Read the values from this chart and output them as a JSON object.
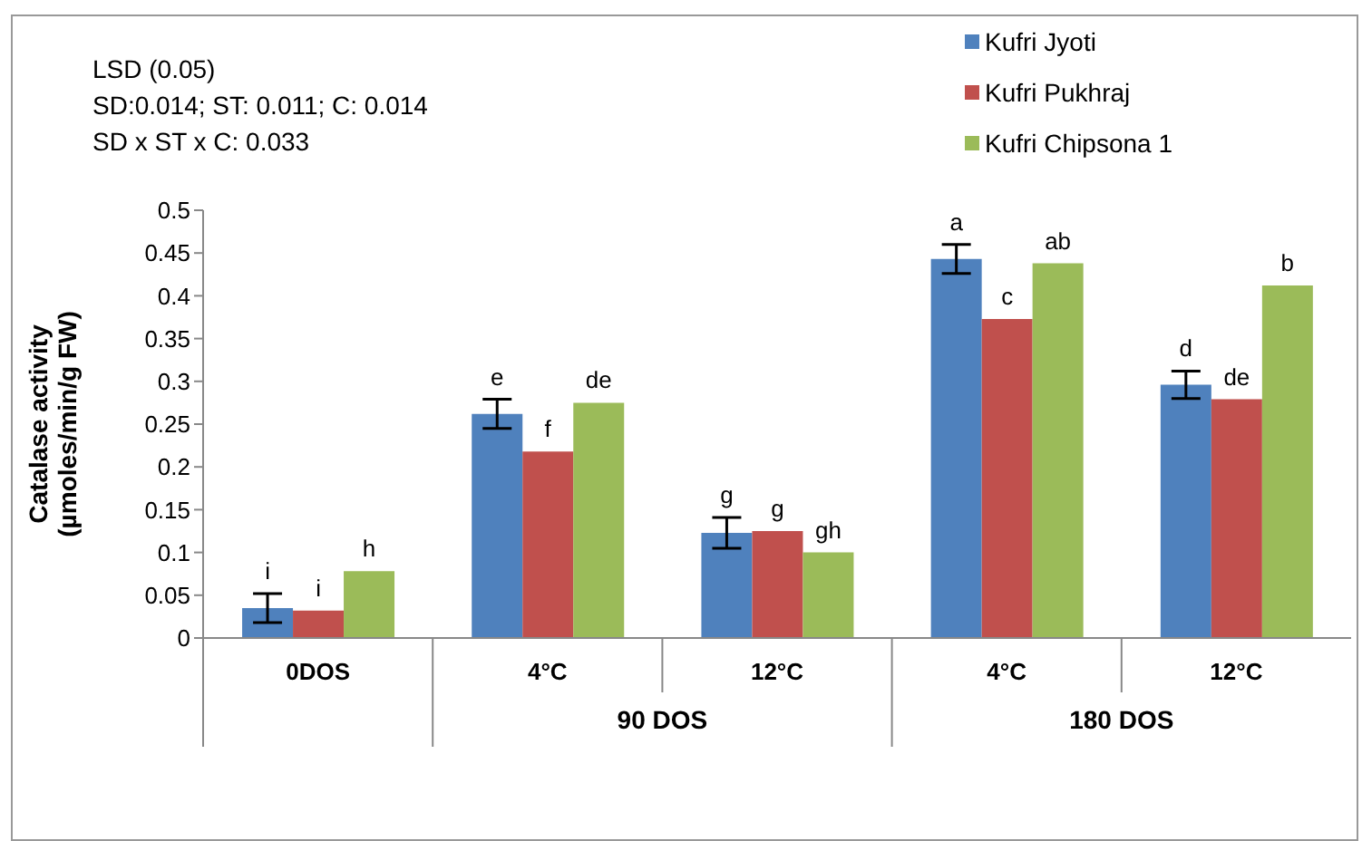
{
  "chart_data": {
    "type": "bar",
    "ylabel": "Catalase activity\n(µmoles/min/g FW)",
    "categories": [
      "0DOS",
      "4°C",
      "12°C",
      "4°C",
      "12°C"
    ],
    "series": [
      {
        "name": "Kufri Jyoti",
        "color": "#4f81bd",
        "values": [
          0.035,
          0.262,
          0.123,
          0.443,
          0.296
        ],
        "errors": [
          0.017,
          0.017,
          0.018,
          0.017,
          0.016
        ],
        "value_labels": [
          "i",
          "e",
          "g",
          "a",
          "d"
        ]
      },
      {
        "name": "Kufri Pukhraj",
        "color": "#c0504d",
        "values": [
          0.032,
          0.218,
          0.125,
          0.373,
          0.279
        ],
        "value_labels": [
          "i",
          "f",
          "g",
          "c",
          "de"
        ]
      },
      {
        "name": "Kufri Chipsona 1",
        "color": "#9bbb59",
        "values": [
          0.078,
          0.275,
          0.1,
          0.438,
          0.412
        ],
        "value_labels": [
          "h",
          "de",
          "gh",
          "ab",
          "b"
        ]
      }
    ],
    "ylim": [
      0,
      0.5
    ],
    "yticks": [
      0,
      0.05,
      0.1,
      0.15,
      0.2,
      0.25,
      0.3,
      0.35,
      0.4,
      0.45,
      0.5
    ],
    "grid": false,
    "legend": "top right",
    "annotations": [
      "LSD (0.05)",
      "SD:0.014; ST: 0.011; C: 0.014",
      "SD x ST x C: 0.033",
      "90 DOS",
      "180 DOS"
    ]
  }
}
